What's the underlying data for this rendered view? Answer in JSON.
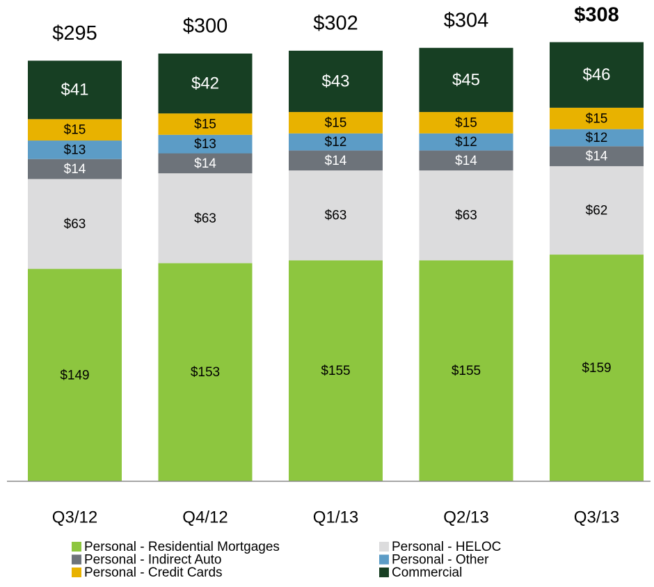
{
  "chart_data": {
    "type": "stacked_bar",
    "categories": [
      "Q3/12",
      "Q4/12",
      "Q1/13",
      "Q2/13",
      "Q3/13"
    ],
    "series": [
      {
        "name": "Personal - Residential Mortgages",
        "color": "#8dc63f",
        "values": [
          149,
          153,
          155,
          155,
          159
        ],
        "value_labels": [
          "$149",
          "$153",
          "$155",
          "$155",
          "$159"
        ]
      },
      {
        "name": "Personal - HELOC",
        "color": "#dcdcdd",
        "values": [
          63,
          63,
          63,
          63,
          62
        ],
        "value_labels": [
          "$63",
          "$63",
          "$63",
          "$63",
          "$62"
        ]
      },
      {
        "name": "Personal - Indirect Auto",
        "color": "#6d737a",
        "values": [
          14,
          14,
          14,
          14,
          14
        ],
        "value_labels": [
          "$14",
          "$14",
          "$14",
          "$14",
          "$14"
        ]
      },
      {
        "name": "Personal - Other",
        "color": "#5c9cc6",
        "values": [
          13,
          13,
          12,
          12,
          12
        ],
        "value_labels": [
          "$13",
          "$13",
          "$12",
          "$12",
          "$12"
        ]
      },
      {
        "name": "Personal - Credit Cards",
        "color": "#e8b200",
        "values": [
          15,
          15,
          15,
          15,
          15
        ],
        "value_labels": [
          "$15",
          "$15",
          "$15",
          "$15",
          "$15"
        ]
      },
      {
        "name": "Commercial",
        "color": "#173f23",
        "values": [
          41,
          42,
          43,
          45,
          46
        ],
        "value_labels": [
          "$41",
          "$42",
          "$43",
          "$45",
          "$46"
        ]
      }
    ],
    "totals": [
      295,
      300,
      302,
      304,
      308
    ],
    "total_labels": [
      "$295",
      "$300",
      "$302",
      "$304",
      "$308"
    ]
  }
}
